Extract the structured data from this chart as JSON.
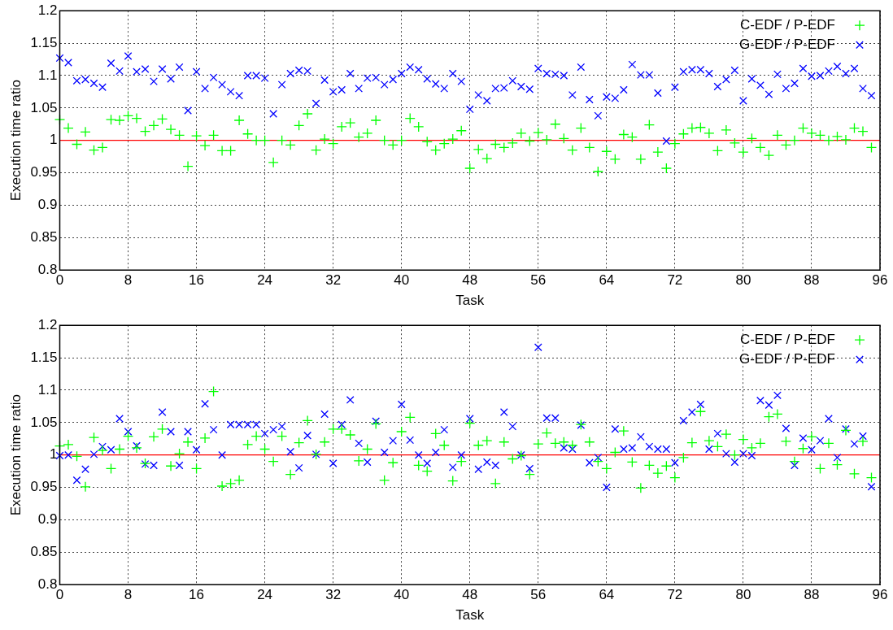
{
  "chart_data": [
    {
      "type": "scatter",
      "xlabel": "Task",
      "ylabel": "Execution time ratio",
      "xlim": [
        0,
        96
      ],
      "ylim": [
        0.8,
        1.2
      ],
      "xticks": [
        0,
        8,
        16,
        24,
        32,
        40,
        48,
        56,
        64,
        72,
        80,
        88,
        96
      ],
      "yticks": [
        0.8,
        0.85,
        0.9,
        0.95,
        1,
        1.05,
        1.1,
        1.15,
        1.2
      ],
      "grid": true,
      "legend": "top right",
      "marker": "cross",
      "x": [
        0,
        1,
        2,
        3,
        4,
        5,
        6,
        7,
        8,
        9,
        10,
        11,
        12,
        13,
        14,
        15,
        16,
        17,
        18,
        19,
        20,
        21,
        22,
        23,
        24,
        25,
        26,
        27,
        28,
        29,
        30,
        31,
        32,
        33,
        34,
        35,
        36,
        37,
        38,
        39,
        40,
        41,
        42,
        43,
        44,
        45,
        46,
        47,
        48,
        49,
        50,
        51,
        52,
        53,
        54,
        55,
        56,
        57,
        58,
        59,
        60,
        61,
        62,
        63,
        64,
        65,
        66,
        67,
        68,
        69,
        70,
        71,
        72,
        73,
        74,
        75,
        76,
        77,
        78,
        79,
        80,
        81,
        82,
        83,
        84,
        85,
        86,
        87,
        88,
        89,
        90,
        91,
        92,
        93,
        94,
        95
      ],
      "ref_lines": [
        {
          "axis": "y",
          "value": 1,
          "color": "#ff0000"
        }
      ],
      "series": [
        {
          "name": "C-EDF / P-EDF",
          "color": "#00ff00",
          "values": [
            1.032,
            1.019,
            0.994,
            1.013,
            0.985,
            0.989,
            1.032,
            1.031,
            1.038,
            1.034,
            1.014,
            1.023,
            1.033,
            1.017,
            1.008,
            0.96,
            1.007,
            0.992,
            1.008,
            0.984,
            0.984,
            1.031,
            1.01,
            1.0,
            1.0,
            0.966,
            1.0,
            0.993,
            1.023,
            1.041,
            0.985,
            1.002,
            0.995,
            1.021,
            1.027,
            1.005,
            1.011,
            1.031,
            1.0,
            0.993,
            1.0,
            1.034,
            1.021,
            0.998,
            0.985,
            0.995,
            1.002,
            1.015,
            0.957,
            0.986,
            0.972,
            0.994,
            0.989,
            0.996,
            1.011,
            0.999,
            1.012,
            1.001,
            1.025,
            1.003,
            0.985,
            1.019,
            0.989,
            0.952,
            0.983,
            0.971,
            1.009,
            1.005,
            0.971,
            1.024,
            0.982,
            0.957,
            0.995,
            1.01,
            1.019,
            1.02,
            1.011,
            0.984,
            1.016,
            0.996,
            0.982,
            1.003,
            0.989,
            0.977,
            1.008,
            0.993,
            1.0,
            1.019,
            1.011,
            1.008,
            1.0,
            1.006,
            1.001,
            1.019,
            1.014,
            0.989
          ]
        },
        {
          "name": "G-EDF / P-EDF",
          "color": "#0000ff",
          "values": [
            1.127,
            1.12,
            1.092,
            1.094,
            1.088,
            1.082,
            1.119,
            1.107,
            1.13,
            1.106,
            1.11,
            1.091,
            1.11,
            1.095,
            1.113,
            1.046,
            1.106,
            1.08,
            1.097,
            1.086,
            1.075,
            1.069,
            1.1,
            1.1,
            1.096,
            1.041,
            1.086,
            1.103,
            1.108,
            1.107,
            1.057,
            1.093,
            1.075,
            1.078,
            1.103,
            1.08,
            1.096,
            1.097,
            1.086,
            1.094,
            1.103,
            1.113,
            1.109,
            1.095,
            1.087,
            1.08,
            1.103,
            1.091,
            1.048,
            1.07,
            1.061,
            1.08,
            1.081,
            1.092,
            1.083,
            1.079,
            1.111,
            1.103,
            1.102,
            1.1,
            1.07,
            1.113,
            1.063,
            1.038,
            1.067,
            1.065,
            1.078,
            1.117,
            1.101,
            1.101,
            1.073,
            0.999,
            1.082,
            1.106,
            1.109,
            1.109,
            1.103,
            1.083,
            1.094,
            1.108,
            1.061,
            1.095,
            1.085,
            1.071,
            1.102,
            1.08,
            1.088,
            1.111,
            1.099,
            1.1,
            1.107,
            1.114,
            1.103,
            1.111,
            1.08,
            1.069
          ]
        }
      ]
    },
    {
      "type": "scatter",
      "xlabel": "Task",
      "ylabel": "Execution time ratio",
      "xlim": [
        0,
        96
      ],
      "ylim": [
        0.8,
        1.2
      ],
      "xticks": [
        0,
        8,
        16,
        24,
        32,
        40,
        48,
        56,
        64,
        72,
        80,
        88,
        96
      ],
      "yticks": [
        0.8,
        0.85,
        0.9,
        0.95,
        1,
        1.05,
        1.1,
        1.15,
        1.2
      ],
      "grid": true,
      "legend": "top right",
      "marker": "cross",
      "x": [
        0,
        1,
        2,
        3,
        4,
        5,
        6,
        7,
        8,
        9,
        10,
        11,
        12,
        13,
        14,
        15,
        16,
        17,
        18,
        19,
        20,
        21,
        22,
        23,
        24,
        25,
        26,
        27,
        28,
        29,
        30,
        31,
        32,
        33,
        34,
        35,
        36,
        37,
        38,
        39,
        40,
        41,
        42,
        43,
        44,
        45,
        46,
        47,
        48,
        49,
        50,
        51,
        52,
        53,
        54,
        55,
        56,
        57,
        58,
        59,
        60,
        61,
        62,
        63,
        64,
        65,
        66,
        67,
        68,
        69,
        70,
        71,
        72,
        73,
        74,
        75,
        76,
        77,
        78,
        79,
        80,
        81,
        82,
        83,
        84,
        85,
        86,
        87,
        88,
        89,
        90,
        91,
        92,
        93,
        94,
        95
      ],
      "ref_lines": [
        {
          "axis": "y",
          "value": 1,
          "color": "#ff0000"
        }
      ],
      "series": [
        {
          "name": "C-EDF / P-EDF",
          "color": "#00ff00",
          "values": [
            1.014,
            1.016,
            0.998,
            0.951,
            1.027,
            1.007,
            0.979,
            1.009,
            1.029,
            1.011,
            0.987,
            1.028,
            1.04,
            0.983,
            1.002,
            1.02,
            0.979,
            1.026,
            1.098,
            0.952,
            0.956,
            0.961,
            1.016,
            1.029,
            1.009,
            0.99,
            1.029,
            0.97,
            1.019,
            1.053,
            1.001,
            1.02,
            1.04,
            1.04,
            1.031,
            0.991,
            1.009,
            1.048,
            0.961,
            0.988,
            1.036,
            1.058,
            0.984,
            0.975,
            1.033,
            1.015,
            0.96,
            0.99,
            1.049,
            1.015,
            1.022,
            0.956,
            1.02,
            0.994,
            0.999,
            0.97,
            1.017,
            1.034,
            1.018,
            1.02,
            1.015,
            1.047,
            1.02,
            0.99,
            0.979,
            1.004,
            1.037,
            0.989,
            0.949,
            0.984,
            0.972,
            0.983,
            0.965,
            0.996,
            1.019,
            1.067,
            1.022,
            1.013,
            1.032,
            1.0,
            1.024,
            1.011,
            1.018,
            1.059,
            1.063,
            1.021,
            0.99,
            1.01,
            1.028,
            0.979,
            1.018,
            0.985,
            1.038,
            0.971,
            1.021,
            0.965
          ]
        },
        {
          "name": "G-EDF / P-EDF",
          "color": "#0000ff",
          "values": [
            0.999,
            1.0,
            0.961,
            0.978,
            1.001,
            1.013,
            1.008,
            1.056,
            1.036,
            1.014,
            0.986,
            0.984,
            1.066,
            1.036,
            0.984,
            1.036,
            1.008,
            1.079,
            1.039,
            1.0,
            1.047,
            1.047,
            1.047,
            1.047,
            1.033,
            1.039,
            1.044,
            1.005,
            0.98,
            1.03,
            1.001,
            1.063,
            0.987,
            1.047,
            1.085,
            1.018,
            0.989,
            1.052,
            1.004,
            1.022,
            1.078,
            1.023,
            1.0,
            0.987,
            1.004,
            1.039,
            0.981,
            1.0,
            1.056,
            0.978,
            0.989,
            0.984,
            1.066,
            1.044,
            1.0,
            0.979,
            1.166,
            1.057,
            1.057,
            1.011,
            1.009,
            1.046,
            0.988,
            0.996,
            0.95,
            1.04,
            1.009,
            1.011,
            1.028,
            1.013,
            1.009,
            1.009,
            0.988,
            1.053,
            1.066,
            1.078,
            1.009,
            1.033,
            1.002,
            0.989,
            1.002,
            0.999,
            1.084,
            1.077,
            1.092,
            1.041,
            0.984,
            1.026,
            1.008,
            1.022,
            1.056,
            0.996,
            1.04,
            1.017,
            1.029,
            0.951
          ]
        }
      ]
    }
  ]
}
